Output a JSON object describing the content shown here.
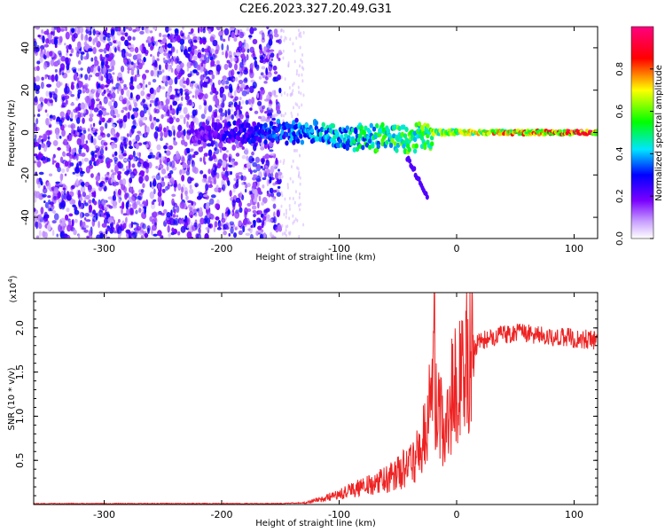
{
  "title": "C2E6.2023.327.20.49.G31",
  "chart_data": [
    {
      "type": "heatmap",
      "xlabel": "Height of straight line (km)",
      "ylabel": "Frequency (Hz)",
      "xlim": [
        -360,
        120
      ],
      "ylim": [
        -50,
        50
      ],
      "xticks": [
        -300,
        -200,
        -100,
        0,
        100
      ],
      "yticks": [
        -40,
        -20,
        0,
        20,
        40
      ],
      "colorbar": {
        "label": "Normalized spectral amplitude",
        "range": [
          0,
          1
        ],
        "ticks": [
          0.0,
          0.2,
          0.4,
          0.6,
          0.8
        ],
        "tick_labels": [
          "0.0",
          "0.2",
          "0.4",
          "0.6",
          "0.8"
        ],
        "colormap": [
          "#ffffff",
          "#7a00ff",
          "#0000ff",
          "#00e5ff",
          "#00ff00",
          "#ffff00",
          "#ff0000",
          "#ff0080"
        ]
      },
      "features": [
        {
          "name": "broadband noise",
          "x_range": [
            -360,
            -150
          ],
          "freq_range": [
            -50,
            50
          ],
          "amplitude": 0.15
        },
        {
          "name": "signal trace",
          "x_range": [
            -225,
            120
          ],
          "center_freq": 0,
          "amplitude": [
            0.2,
            0.95
          ]
        }
      ]
    },
    {
      "type": "line",
      "xlabel": "Height of straight line (km)",
      "ylabel": "SNR (10 * v/v)",
      "yscale_label": "(x10",
      "yscale_exp": "4",
      "yscale_tail": ")",
      "xlim": [
        -360,
        120
      ],
      "ylim": [
        0,
        2.4
      ],
      "xticks": [
        -300,
        -200,
        -100,
        0,
        100
      ],
      "yticks": [
        0.5,
        1.0,
        1.5,
        2.0
      ],
      "ytick_labels": [
        "0.5",
        "1.0",
        "1.5",
        "2.0"
      ],
      "series": [
        {
          "color": "#ee2222",
          "x": [
            -360,
            -300,
            -250,
            -200,
            -150,
            -130,
            -115,
            -100,
            -80,
            -60,
            -50,
            -40,
            -30,
            -25,
            -20,
            -15,
            -10,
            -5,
            0,
            5,
            10,
            15,
            20,
            30,
            40,
            50,
            60,
            70,
            80,
            90,
            100,
            110,
            120
          ],
          "y": [
            0.01,
            0.01,
            0.01,
            0.01,
            0.01,
            0.02,
            0.06,
            0.12,
            0.2,
            0.28,
            0.35,
            0.45,
            0.65,
            0.9,
            1.3,
            1.0,
            0.8,
            1.2,
            1.35,
            1.55,
            1.7,
            1.78,
            1.85,
            1.9,
            1.92,
            1.95,
            1.93,
            1.92,
            1.9,
            1.9,
            1.88,
            1.87,
            1.86
          ]
        }
      ]
    }
  ]
}
